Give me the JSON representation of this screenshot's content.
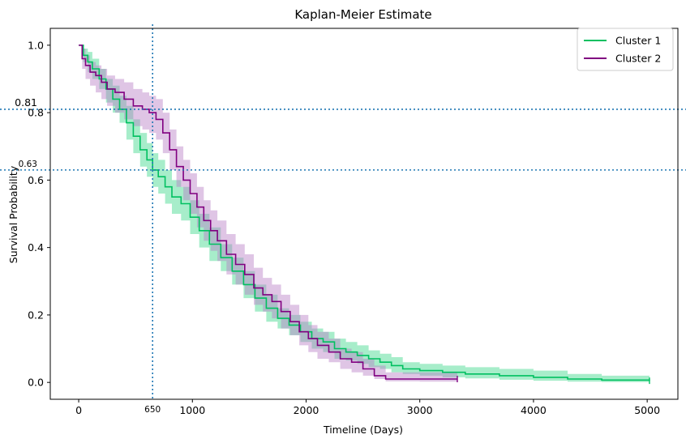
{
  "chart_data": {
    "type": "line",
    "title": "Kaplan-Meier Estimate",
    "xlabel": "Timeline (Days)",
    "ylabel": "Survival Probability",
    "xlim": [
      -250,
      5270
    ],
    "ylim": [
      -0.05,
      1.05
    ],
    "x_ticks": [
      0,
      1000,
      2000,
      3000,
      4000,
      5000
    ],
    "x_tick_labels": [
      "0",
      "1000",
      "2000",
      "3000",
      "4000",
      "5000"
    ],
    "y_ticks": [
      0.0,
      0.2,
      0.4,
      0.6,
      0.8,
      1.0
    ],
    "y_tick_labels": [
      "0.0",
      "0.2",
      "0.4",
      "0.6",
      "0.8",
      "1.0"
    ],
    "grid": false,
    "legend_position": "top-right",
    "reference_lines": {
      "vertical": [
        {
          "x": 650,
          "label": "650"
        }
      ],
      "horizontal": [
        {
          "y": 0.81,
          "label": "0.81"
        },
        {
          "y": 0.63,
          "label": "0.63"
        }
      ],
      "color": "#1f77b4",
      "style": "dotted"
    },
    "series": [
      {
        "name": "Cluster 1",
        "color": "#00c060",
        "band_color": "#3cd68a",
        "x": [
          0,
          40,
          80,
          120,
          180,
          240,
          300,
          360,
          420,
          480,
          540,
          600,
          650,
          700,
          760,
          820,
          900,
          980,
          1060,
          1150,
          1250,
          1350,
          1450,
          1550,
          1650,
          1750,
          1850,
          1950,
          2050,
          2150,
          2250,
          2350,
          2450,
          2550,
          2650,
          2750,
          2850,
          3000,
          3200,
          3400,
          3700,
          4000,
          4300,
          4600,
          5020
        ],
        "y": [
          1.0,
          0.97,
          0.95,
          0.93,
          0.9,
          0.87,
          0.84,
          0.81,
          0.77,
          0.73,
          0.69,
          0.66,
          0.63,
          0.61,
          0.58,
          0.55,
          0.53,
          0.49,
          0.45,
          0.41,
          0.37,
          0.33,
          0.29,
          0.25,
          0.22,
          0.19,
          0.17,
          0.15,
          0.13,
          0.12,
          0.1,
          0.09,
          0.08,
          0.07,
          0.06,
          0.05,
          0.04,
          0.035,
          0.03,
          0.025,
          0.02,
          0.015,
          0.01,
          0.007,
          0.005
        ],
        "lower": [
          1.0,
          0.95,
          0.92,
          0.9,
          0.87,
          0.83,
          0.8,
          0.77,
          0.72,
          0.68,
          0.64,
          0.61,
          0.58,
          0.56,
          0.53,
          0.5,
          0.48,
          0.44,
          0.4,
          0.36,
          0.33,
          0.29,
          0.25,
          0.21,
          0.18,
          0.16,
          0.14,
          0.12,
          0.1,
          0.09,
          0.07,
          0.065,
          0.055,
          0.045,
          0.04,
          0.03,
          0.025,
          0.02,
          0.015,
          0.012,
          0.008,
          0.005,
          0.002,
          0.001,
          0.0
        ],
        "upper": [
          1.0,
          0.99,
          0.98,
          0.96,
          0.93,
          0.9,
          0.88,
          0.85,
          0.82,
          0.78,
          0.74,
          0.71,
          0.68,
          0.66,
          0.63,
          0.6,
          0.58,
          0.54,
          0.5,
          0.46,
          0.41,
          0.37,
          0.33,
          0.29,
          0.26,
          0.22,
          0.2,
          0.18,
          0.16,
          0.15,
          0.13,
          0.12,
          0.11,
          0.095,
          0.085,
          0.075,
          0.06,
          0.055,
          0.05,
          0.045,
          0.04,
          0.035,
          0.025,
          0.02,
          0.015
        ]
      },
      {
        "name": "Cluster 2",
        "color": "#800080",
        "band_color": "#b97fc6",
        "x": [
          0,
          30,
          60,
          100,
          150,
          200,
          250,
          320,
          400,
          480,
          560,
          620,
          680,
          740,
          800,
          860,
          920,
          980,
          1040,
          1100,
          1160,
          1220,
          1300,
          1380,
          1460,
          1540,
          1620,
          1700,
          1780,
          1860,
          1940,
          2020,
          2100,
          2200,
          2300,
          2400,
          2500,
          2600,
          2700,
          3000,
          3330
        ],
        "y": [
          1.0,
          0.96,
          0.94,
          0.92,
          0.91,
          0.89,
          0.87,
          0.86,
          0.84,
          0.82,
          0.81,
          0.8,
          0.78,
          0.74,
          0.69,
          0.64,
          0.6,
          0.56,
          0.52,
          0.48,
          0.45,
          0.42,
          0.38,
          0.35,
          0.32,
          0.28,
          0.26,
          0.24,
          0.21,
          0.18,
          0.15,
          0.13,
          0.11,
          0.09,
          0.07,
          0.06,
          0.04,
          0.02,
          0.01,
          0.01,
          0.01
        ],
        "lower": [
          1.0,
          0.93,
          0.9,
          0.88,
          0.86,
          0.84,
          0.82,
          0.8,
          0.78,
          0.76,
          0.75,
          0.74,
          0.72,
          0.68,
          0.63,
          0.58,
          0.54,
          0.5,
          0.46,
          0.42,
          0.39,
          0.36,
          0.32,
          0.29,
          0.26,
          0.23,
          0.21,
          0.19,
          0.16,
          0.14,
          0.11,
          0.09,
          0.07,
          0.06,
          0.04,
          0.03,
          0.02,
          0.01,
          0.003,
          0.002,
          0.0
        ],
        "upper": [
          1.0,
          0.99,
          0.97,
          0.95,
          0.94,
          0.93,
          0.91,
          0.9,
          0.89,
          0.87,
          0.86,
          0.85,
          0.84,
          0.8,
          0.75,
          0.7,
          0.66,
          0.62,
          0.58,
          0.54,
          0.51,
          0.48,
          0.44,
          0.41,
          0.38,
          0.34,
          0.31,
          0.29,
          0.26,
          0.23,
          0.2,
          0.17,
          0.15,
          0.13,
          0.1,
          0.09,
          0.07,
          0.05,
          0.03,
          0.03,
          0.03
        ]
      }
    ]
  }
}
